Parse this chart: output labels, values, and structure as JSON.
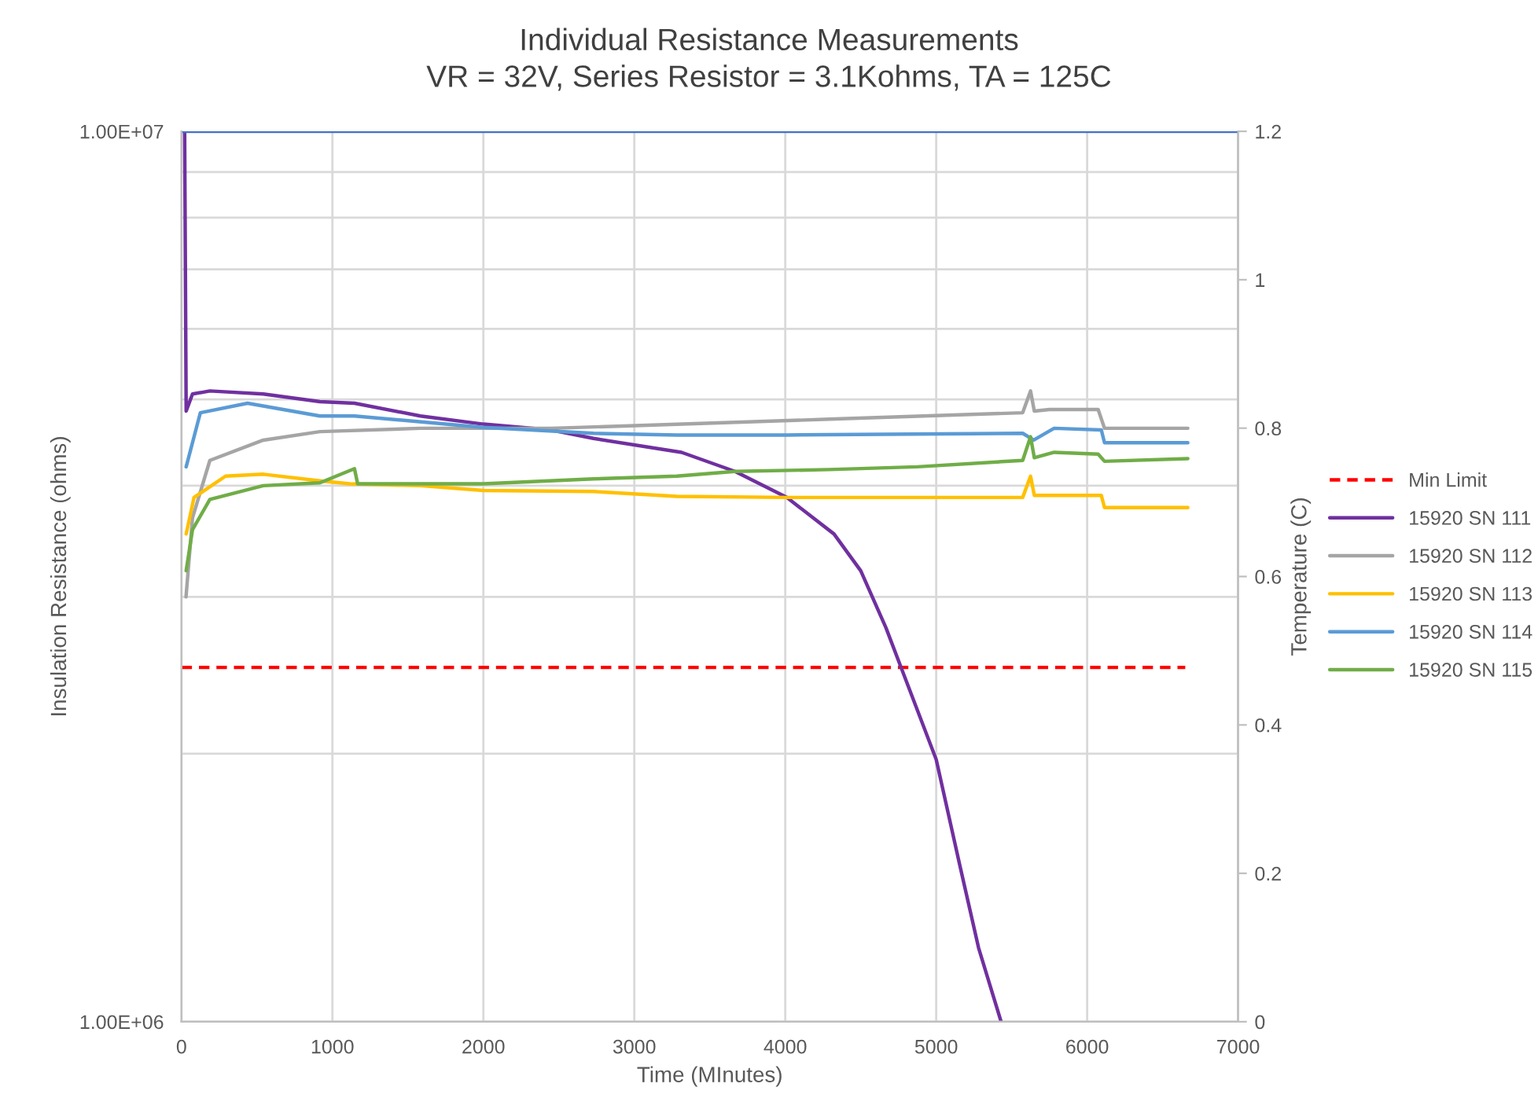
{
  "chart_data": {
    "type": "line",
    "title": "Individual Resistance Measurements",
    "subtitle": "VR = 32V, Series Resistor = 3.1Kohms, TA = 125C",
    "xlabel": "Time (MInutes)",
    "ylabel": "Insulation Resistance (ohms)",
    "y2label": "Temperature (C)",
    "log": "y",
    "grid": true,
    "legend": "right",
    "xlim": [
      0,
      7000
    ],
    "xticks": [
      0,
      1000,
      2000,
      3000,
      4000,
      5000,
      6000,
      7000
    ],
    "ylim": [
      1000000,
      10000000
    ],
    "yticks": [
      {
        "value": 1000000,
        "label": "1.00E+06"
      },
      {
        "value": 2000000,
        "label": null
      },
      {
        "value": 3000000,
        "label": null
      },
      {
        "value": 4000000,
        "label": null
      },
      {
        "value": 5000000,
        "label": null
      },
      {
        "value": 6000000,
        "label": null
      },
      {
        "value": 7000000,
        "label": null
      },
      {
        "value": 8000000,
        "label": null
      },
      {
        "value": 9000000,
        "label": null
      },
      {
        "value": 10000000,
        "label": "1.00E+07"
      }
    ],
    "y2lim": [
      0,
      1.2
    ],
    "y2ticks": [
      0,
      0.2,
      0.4,
      0.6,
      0.8,
      1,
      1.2
    ],
    "series": [
      {
        "name": "Min Limit",
        "color": "#ff0000",
        "line_style": "dashed",
        "x": [
          0,
          6650
        ],
        "values": [
          2500000,
          2500000
        ]
      },
      {
        "name": "15920 SN 111",
        "color": "#7030a0",
        "x": [
          21,
          31,
          73,
          188,
          542,
          917,
          1146,
          1583,
          2000,
          2448,
          2729,
          3313,
          3667,
          4010,
          4323,
          4500,
          4667,
          4771,
          5000,
          5156,
          5281,
          5430
        ],
        "values": [
          10000000,
          4850000,
          5070000,
          5110000,
          5070000,
          4970000,
          4950000,
          4790000,
          4690000,
          4620000,
          4520000,
          4360000,
          4150000,
          3880000,
          3530000,
          3210000,
          2770000,
          2490000,
          1970000,
          1500000,
          1210000,
          1000000
        ]
      },
      {
        "name": "15920 SN 112",
        "color": "#a5a5a5",
        "x": [
          30,
          73,
          188,
          542,
          917,
          1583,
          2448,
          2969,
          4292,
          5573,
          5625,
          5650,
          5750,
          6073,
          6115,
          6667
        ],
        "values": [
          3000000,
          3680000,
          4270000,
          4500000,
          4600000,
          4640000,
          4640000,
          4670000,
          4750000,
          4830000,
          5110000,
          4850000,
          4870000,
          4870000,
          4640000,
          4640000
        ]
      },
      {
        "name": "15920 SN 113",
        "color": "#ffc000",
        "x": [
          31,
          83,
          292,
          542,
          917,
          1115,
          1583,
          2000,
          2729,
          3281,
          4010,
          5573,
          5625,
          5650,
          5917,
          6094,
          6115,
          6667
        ],
        "values": [
          3530000,
          3880000,
          4100000,
          4120000,
          4050000,
          4020000,
          4000000,
          3950000,
          3940000,
          3890000,
          3880000,
          3880000,
          4100000,
          3900000,
          3900000,
          3900000,
          3780000,
          3780000
        ]
      },
      {
        "name": "15920 SN 114",
        "color": "#5b9bd5",
        "x": [
          31,
          125,
          438,
          917,
          1146,
          2000,
          2729,
          3281,
          4010,
          5573,
          5646,
          5781,
          6094,
          6115,
          6667
        ],
        "values": [
          4200000,
          4830000,
          4950000,
          4790000,
          4790000,
          4650000,
          4580000,
          4560000,
          4560000,
          4580000,
          4500000,
          4640000,
          4620000,
          4470000,
          4470000
        ]
      },
      {
        "name": "15920 SN 115",
        "color": "#70ad47",
        "x": [
          31,
          73,
          188,
          542,
          917,
          1146,
          1167,
          2000,
          2729,
          3281,
          3667,
          4292,
          4875,
          5573,
          5625,
          5650,
          5781,
          6073,
          6115,
          6667
        ],
        "values": [
          3210000,
          3570000,
          3860000,
          4000000,
          4030000,
          4180000,
          4020000,
          4020000,
          4070000,
          4100000,
          4150000,
          4170000,
          4200000,
          4270000,
          4540000,
          4300000,
          4360000,
          4340000,
          4260000,
          4290000
        ]
      },
      {
        "color": "#4472c4",
        "axis": "y2",
        "x": [
          0,
          7000
        ],
        "values": [
          1.2,
          1.2
        ]
      }
    ]
  }
}
